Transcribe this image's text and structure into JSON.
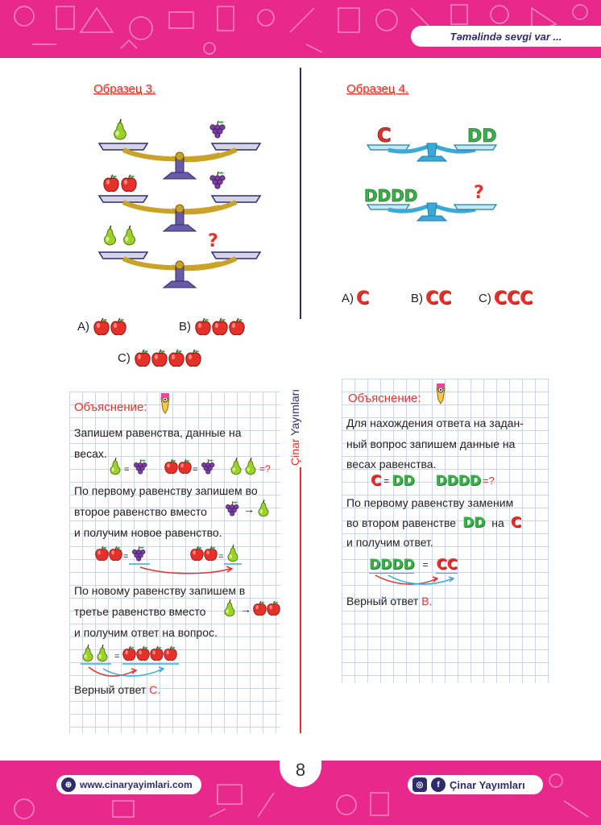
{
  "header": {
    "slogan": "Təməlində sevgi var ..."
  },
  "footer": {
    "website": "www.cinaryayimlari.com",
    "social": "Çinar Yayımları",
    "page_number": "8"
  },
  "brand_vertical": {
    "part1": "Çinar",
    "part2": "Yayımları"
  },
  "sample3": {
    "title": "Образец 3.",
    "question_mark": "?",
    "answers": [
      {
        "letter": "A)",
        "apples": 2
      },
      {
        "letter": "B)",
        "apples": 3
      },
      {
        "letter": "C)",
        "apples": 4
      }
    ],
    "explanation": {
      "title": "Объяснение:",
      "line1": "Запишем равенства, данные на",
      "line2": "весах.",
      "eq_equals": "=",
      "eq_question": "=?",
      "line3": "По первому равенству запишем во",
      "line4": "второе равенство вместо",
      "line5": "и получим новое равенство.",
      "line6": "По новому равенству запишем в",
      "line7": "третье равенство вместо",
      "line8": "и получим ответ на вопрос.",
      "final_prefix": "Верный ответ ",
      "final_answer": "C."
    }
  },
  "sample4": {
    "title": "Образец 4.",
    "scale1_left": "C",
    "scale1_right": "DD",
    "scale2_left": "DDDD",
    "scale2_right": "?",
    "answers": [
      {
        "letter": "A)",
        "value": "C"
      },
      {
        "letter": "B)",
        "value": "CC"
      },
      {
        "letter": "C)",
        "value": "CCC"
      }
    ],
    "explanation": {
      "title": "Объяснение:",
      "line1": "Для нахождения ответа на задан-",
      "line2": "ный вопрос запишем данные на",
      "line3": "весах равенства.",
      "eq1_left": "C",
      "eq1_equals": "=",
      "eq1_right": "DD",
      "eq2_left": "DDDD",
      "eq2_question": "=?",
      "line4": "По первому равенству заменим",
      "line5_a": "во втором равенстве",
      "line5_b": "DD",
      "line5_c": "на",
      "line5_d": "C",
      "line6": "и получим ответ.",
      "eq3_left": "DDDD",
      "eq3_equals": "=",
      "eq3_right": "CC",
      "final_prefix": "Верный ответ ",
      "final_answer": "B."
    }
  },
  "colors": {
    "brand_pink": "#e8288b",
    "navy": "#2d2d6b",
    "red": "#e4322b",
    "green": "#3cb04a",
    "scale_blue": "#39a9d6",
    "scale_gold": "#c9a227"
  }
}
